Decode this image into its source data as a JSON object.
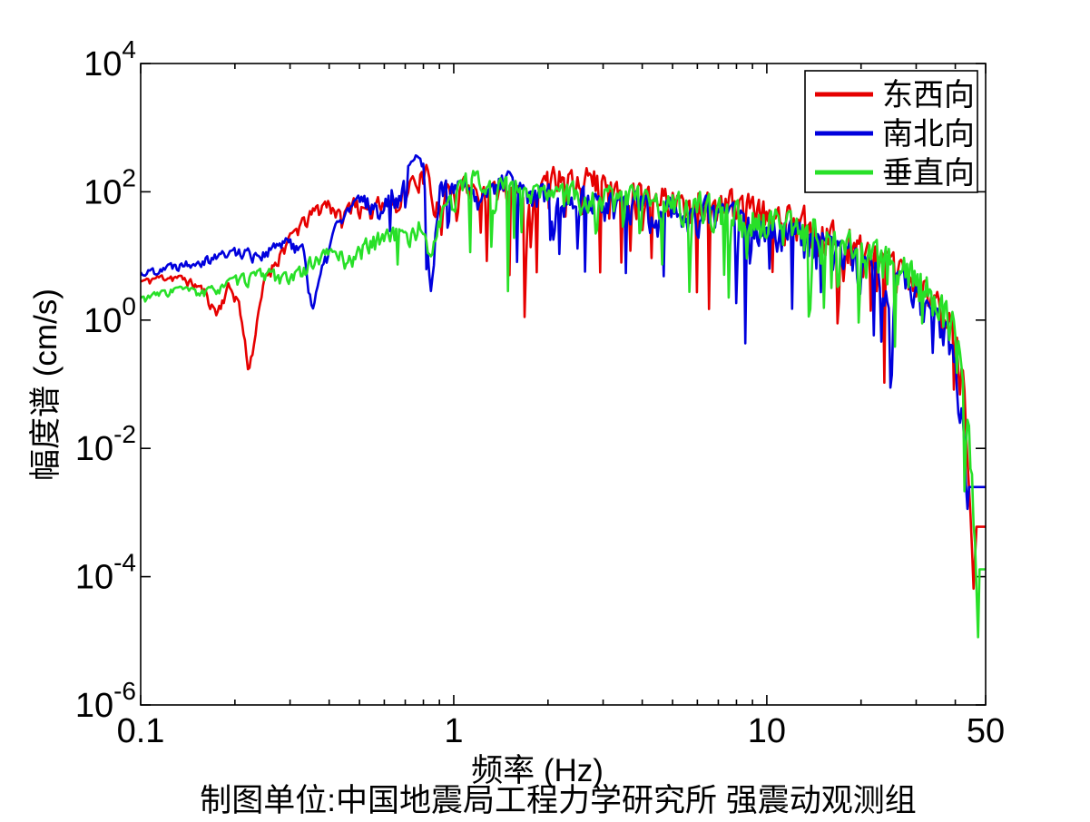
{
  "figure": {
    "background": "#ffffff"
  },
  "chart_data": {
    "type": "line",
    "title": "",
    "xlabel": "频率 (Hz)",
    "ylabel": "幅度谱 (cm/s)",
    "caption": "制图单位:中国地震局工程力学研究所 强震动观测组",
    "xscale": "log",
    "yscale": "log",
    "xlim": [
      0.1,
      50
    ],
    "ylim": [
      1e-06,
      10000.0
    ],
    "xticks": [
      {
        "v": 0.1,
        "label": "0.1"
      },
      {
        "v": 1,
        "label": "1"
      },
      {
        "v": 10,
        "label": "10"
      },
      {
        "v": 50,
        "label": "50"
      }
    ],
    "xminor": [
      0.2,
      0.3,
      0.4,
      0.5,
      0.6,
      0.7,
      0.8,
      0.9,
      2,
      3,
      4,
      5,
      6,
      7,
      8,
      9,
      20,
      30,
      40
    ],
    "yticks_exponents": [
      4,
      2,
      0,
      -2,
      -4,
      -6
    ],
    "axis_color": "#000000",
    "grid": false,
    "legend_position": "top-right",
    "noise": {
      "samples": 560,
      "amp_lo": 0.07,
      "amp_hi": 0.4,
      "spike_prob": 0.075,
      "spike_fmin": 0.6,
      "spike_fmax": 43
    },
    "series": [
      {
        "name": "东西向",
        "color": "#e60000",
        "seed": 11,
        "flat_from": 46.3,
        "anchors": [
          [
            0.1,
            4
          ],
          [
            0.12,
            5
          ],
          [
            0.14,
            4.5
          ],
          [
            0.16,
            3
          ],
          [
            0.175,
            1.3
          ],
          [
            0.19,
            3.5
          ],
          [
            0.205,
            2.2
          ],
          [
            0.222,
            0.18
          ],
          [
            0.25,
            5
          ],
          [
            0.28,
            12
          ],
          [
            0.32,
            30
          ],
          [
            0.36,
            55
          ],
          [
            0.4,
            75
          ],
          [
            0.44,
            40
          ],
          [
            0.48,
            85
          ],
          [
            0.53,
            45
          ],
          [
            0.58,
            95
          ],
          [
            0.63,
            60
          ],
          [
            0.7,
            120
          ],
          [
            0.78,
            200
          ],
          [
            0.82,
            230
          ],
          [
            0.86,
            60
          ],
          [
            0.92,
            130
          ],
          [
            1.0,
            100
          ],
          [
            1.1,
            170
          ],
          [
            1.2,
            80
          ],
          [
            1.35,
            140
          ],
          [
            1.55,
            120
          ],
          [
            1.75,
            70
          ],
          [
            1.95,
            160
          ],
          [
            2.2,
            240
          ],
          [
            2.45,
            180
          ],
          [
            2.7,
            250
          ],
          [
            3.0,
            150
          ],
          [
            3.4,
            100
          ],
          [
            3.8,
            130
          ],
          [
            4.3,
            90
          ],
          [
            4.8,
            110
          ],
          [
            5.5,
            70
          ],
          [
            6.2,
            90
          ],
          [
            7.0,
            75
          ],
          [
            8.0,
            85
          ],
          [
            9.0,
            65
          ],
          [
            10,
            55
          ],
          [
            11.5,
            45
          ],
          [
            13,
            50
          ],
          [
            15,
            30
          ],
          [
            17,
            22
          ],
          [
            20,
            15
          ],
          [
            23,
            10
          ],
          [
            26,
            7
          ],
          [
            29,
            5
          ],
          [
            32,
            3.5
          ],
          [
            35,
            2.2
          ],
          [
            38,
            1.2
          ],
          [
            40.5,
            0.6
          ],
          [
            42.5,
            0.12
          ],
          [
            44,
            0.012
          ],
          [
            45.3,
            0.0008
          ],
          [
            45.8,
            0.0001
          ],
          [
            46.3,
            0.0006
          ],
          [
            50,
            0.0006
          ]
        ]
      },
      {
        "name": "南北向",
        "color": "#0000dd",
        "seed": 22,
        "flat_from": 44.2,
        "anchors": [
          [
            0.1,
            5.5
          ],
          [
            0.12,
            7
          ],
          [
            0.15,
            9
          ],
          [
            0.18,
            11
          ],
          [
            0.21,
            13
          ],
          [
            0.24,
            11
          ],
          [
            0.27,
            15
          ],
          [
            0.3,
            18
          ],
          [
            0.33,
            14
          ],
          [
            0.355,
            1.6
          ],
          [
            0.385,
            8
          ],
          [
            0.42,
            30
          ],
          [
            0.47,
            60
          ],
          [
            0.52,
            90
          ],
          [
            0.57,
            55
          ],
          [
            0.62,
            110
          ],
          [
            0.67,
            90
          ],
          [
            0.72,
            220
          ],
          [
            0.76,
            320
          ],
          [
            0.8,
            260
          ],
          [
            0.84,
            3
          ],
          [
            0.9,
            150
          ],
          [
            1.0,
            120
          ],
          [
            1.1,
            170
          ],
          [
            1.2,
            60
          ],
          [
            1.3,
            110
          ],
          [
            1.45,
            190
          ],
          [
            1.6,
            130
          ],
          [
            1.8,
            80
          ],
          [
            2.0,
            120
          ],
          [
            2.3,
            70
          ],
          [
            2.6,
            110
          ],
          [
            3.0,
            85
          ],
          [
            3.4,
            60
          ],
          [
            3.9,
            95
          ],
          [
            4.4,
            45
          ],
          [
            4.9,
            75
          ],
          [
            5.5,
            35
          ],
          [
            6.2,
            65
          ],
          [
            7.0,
            55
          ],
          [
            8.0,
            45
          ],
          [
            9.0,
            38
          ],
          [
            10,
            32
          ],
          [
            12,
            26
          ],
          [
            14,
            20
          ],
          [
            16,
            15
          ],
          [
            19,
            11
          ],
          [
            22,
            7.5
          ],
          [
            25,
            5.5
          ],
          [
            28,
            4
          ],
          [
            31,
            2.8
          ],
          [
            34,
            1.6
          ],
          [
            37,
            0.9
          ],
          [
            39.5,
            0.35
          ],
          [
            41.5,
            0.08
          ],
          [
            43,
            0.012
          ],
          [
            44.2,
            0.0025
          ],
          [
            50,
            0.0025
          ]
        ]
      },
      {
        "name": "垂直向",
        "color": "#28e028",
        "seed": 33,
        "flat_from": 47.8,
        "anchors": [
          [
            0.1,
            2.2
          ],
          [
            0.13,
            3.2
          ],
          [
            0.16,
            2.8
          ],
          [
            0.19,
            4
          ],
          [
            0.22,
            5
          ],
          [
            0.26,
            6
          ],
          [
            0.3,
            4.5
          ],
          [
            0.34,
            8
          ],
          [
            0.38,
            11
          ],
          [
            0.42,
            13
          ],
          [
            0.46,
            9
          ],
          [
            0.52,
            16
          ],
          [
            0.58,
            22
          ],
          [
            0.65,
            28
          ],
          [
            0.72,
            20
          ],
          [
            0.78,
            35
          ],
          [
            0.84,
            10
          ],
          [
            0.9,
            45
          ],
          [
            0.97,
            70
          ],
          [
            1.05,
            150
          ],
          [
            1.15,
            190
          ],
          [
            1.3,
            120
          ],
          [
            1.5,
            170
          ],
          [
            1.7,
            90
          ],
          [
            1.9,
            120
          ],
          [
            2.15,
            95
          ],
          [
            2.4,
            130
          ],
          [
            2.7,
            80
          ],
          [
            3.0,
            110
          ],
          [
            3.4,
            85
          ],
          [
            3.9,
            100
          ],
          [
            4.4,
            70
          ],
          [
            4.9,
            90
          ],
          [
            5.5,
            65
          ],
          [
            6.2,
            80
          ],
          [
            7.0,
            60
          ],
          [
            8.0,
            55
          ],
          [
            9.0,
            50
          ],
          [
            10,
            45
          ],
          [
            12,
            35
          ],
          [
            14,
            28
          ],
          [
            16,
            22
          ],
          [
            19,
            17
          ],
          [
            22,
            13
          ],
          [
            25,
            10
          ],
          [
            28,
            7.5
          ],
          [
            31,
            5.5
          ],
          [
            34,
            3.2
          ],
          [
            37,
            1.8
          ],
          [
            39.5,
            0.8
          ],
          [
            42,
            0.2
          ],
          [
            44,
            0.03
          ],
          [
            45.5,
            0.003
          ],
          [
            46.6,
            0.00018
          ],
          [
            47.2,
            1.8e-05
          ],
          [
            47.8,
            0.00013
          ],
          [
            50,
            0.00013
          ]
        ]
      }
    ]
  }
}
